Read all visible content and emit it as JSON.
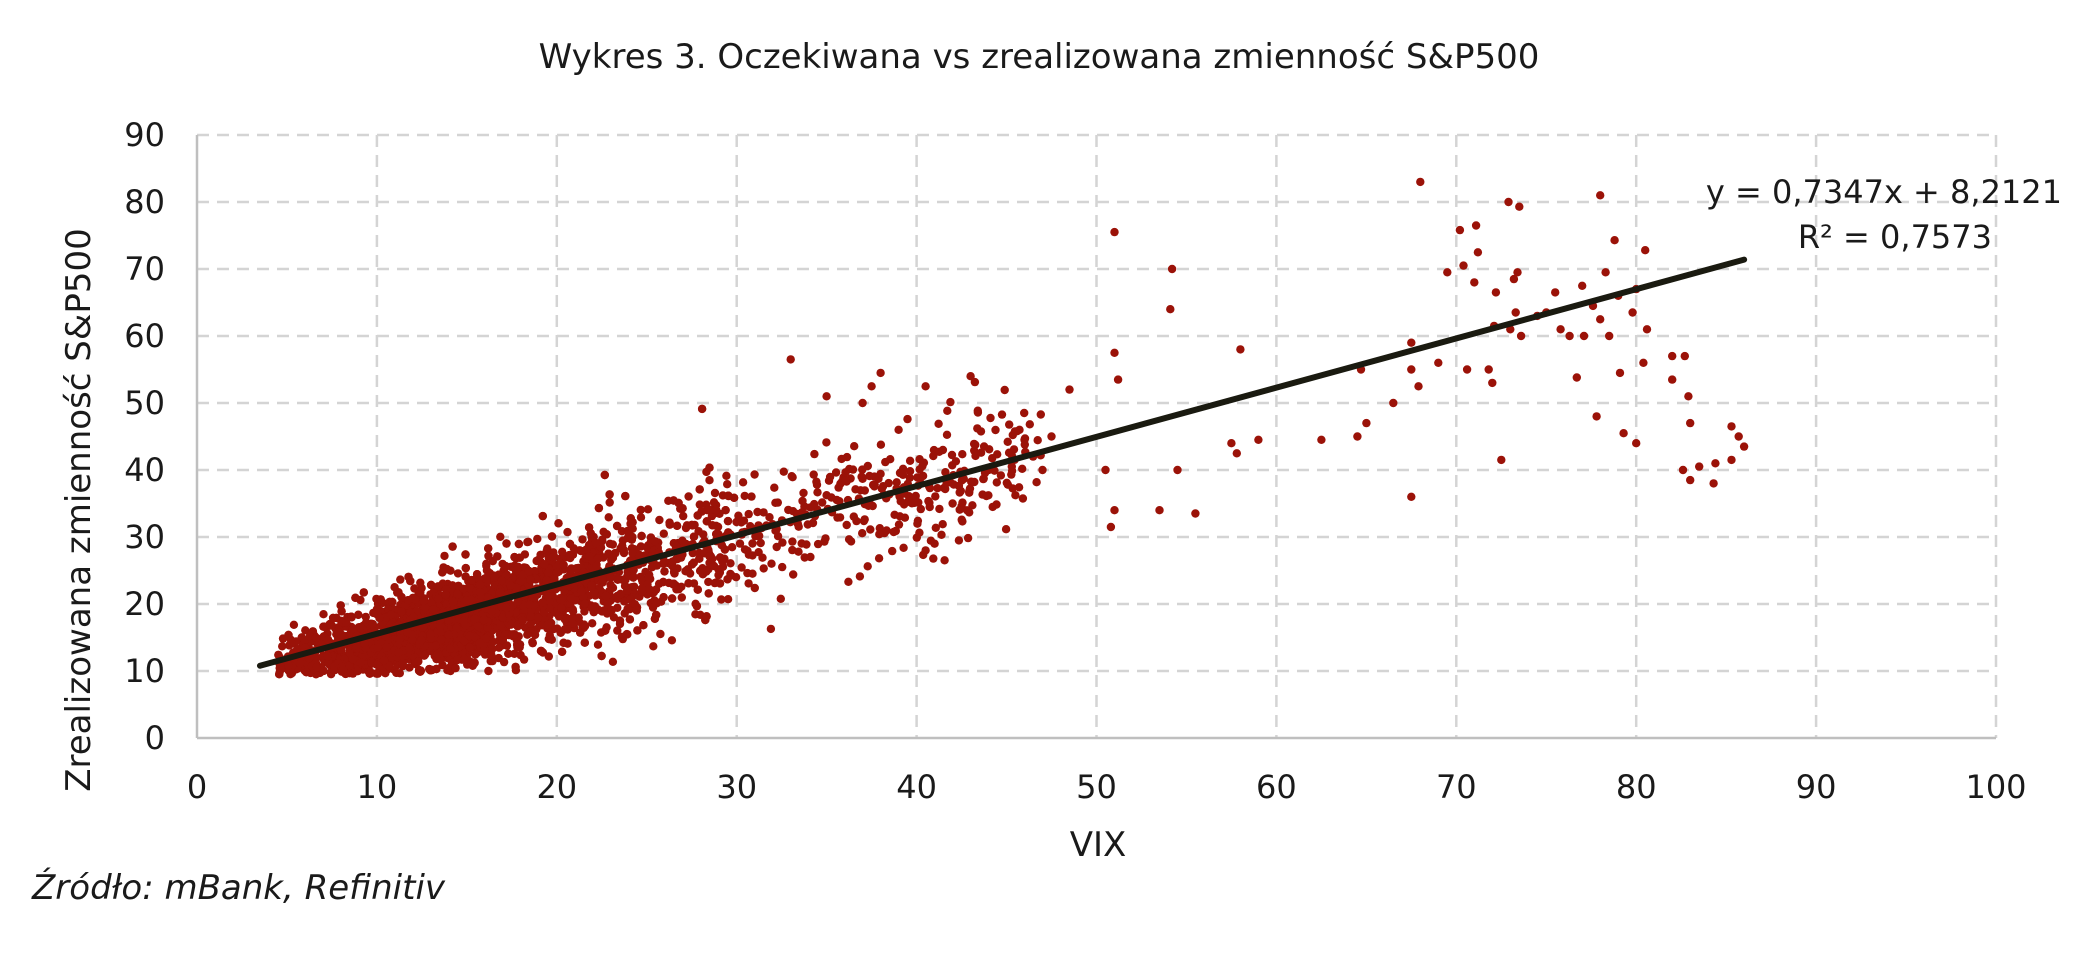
{
  "chart_data": {
    "type": "scatter",
    "title": "Wykres 3. Oczekiwana vs zrealizowana zmienność S&P500",
    "xlabel": "VIX",
    "ylabel": "Zrealizowana zmienność S&P500",
    "xlim": [
      0,
      100
    ],
    "ylim": [
      0,
      90
    ],
    "x_ticks": [
      "0",
      "10",
      "20",
      "30",
      "40",
      "50",
      "60",
      "70",
      "80",
      "90",
      "100"
    ],
    "y_ticks": [
      "0",
      "10",
      "20",
      "30",
      "40",
      "50",
      "60",
      "70",
      "80",
      "90"
    ],
    "grid": true,
    "point_color": "#9b1208",
    "trendline": {
      "color": "#1a1a10",
      "slope": 0.7347,
      "intercept": 8.2121,
      "x_range": [
        3.5,
        86
      ],
      "equation": "y = 0,7347x + 8,2121",
      "r_squared": "R² = 0,7573"
    },
    "sampled_points_note_x_y": [
      [
        33,
        56.5
      ],
      [
        35,
        51
      ],
      [
        37.5,
        52.5
      ],
      [
        38,
        54.5
      ],
      [
        37,
        50
      ],
      [
        39,
        46
      ],
      [
        40.5,
        52.5
      ],
      [
        43,
        54
      ],
      [
        41,
        29
      ],
      [
        40.5,
        28
      ],
      [
        42,
        35
      ],
      [
        44,
        40
      ],
      [
        46,
        44.5
      ],
      [
        47.5,
        45
      ],
      [
        47,
        40
      ],
      [
        48.5,
        52
      ],
      [
        50.5,
        40
      ],
      [
        51,
        75.5
      ],
      [
        51,
        57.5
      ],
      [
        51.2,
        53.5
      ],
      [
        51,
        34
      ],
      [
        50.8,
        31.5
      ],
      [
        53.5,
        34
      ],
      [
        54.2,
        70
      ],
      [
        54.1,
        64
      ],
      [
        54.5,
        40
      ],
      [
        55.5,
        33.5
      ],
      [
        57.5,
        44
      ],
      [
        57.8,
        42.5
      ],
      [
        58,
        58
      ],
      [
        59,
        44.5
      ],
      [
        62.5,
        44.5
      ],
      [
        64.5,
        45
      ],
      [
        64.7,
        55
      ],
      [
        65,
        47
      ],
      [
        66.5,
        50
      ],
      [
        67.5,
        59
      ],
      [
        67.5,
        55
      ],
      [
        67.5,
        36
      ],
      [
        68,
        83
      ],
      [
        67.9,
        52.5
      ],
      [
        69,
        56
      ],
      [
        69.5,
        69.5
      ],
      [
        70.2,
        75.8
      ],
      [
        70.4,
        70.5
      ],
      [
        70.6,
        55
      ],
      [
        71.1,
        76.5
      ],
      [
        71,
        68
      ],
      [
        71.2,
        72.5
      ],
      [
        71.8,
        55
      ],
      [
        72,
        53
      ],
      [
        72.1,
        61.5
      ],
      [
        72.2,
        66.5
      ],
      [
        72.5,
        41.5
      ],
      [
        72.9,
        80
      ],
      [
        73,
        61
      ],
      [
        73.2,
        68.5
      ],
      [
        73.3,
        63.5
      ],
      [
        73.4,
        69.5
      ],
      [
        73.5,
        79.3
      ],
      [
        73.6,
        60
      ],
      [
        74.5,
        63
      ],
      [
        75,
        63.5
      ],
      [
        75.5,
        66.5
      ],
      [
        75.8,
        61
      ],
      [
        76.3,
        60
      ],
      [
        76.7,
        53.8
      ],
      [
        77,
        67.5
      ],
      [
        77.1,
        60
      ],
      [
        77.6,
        64.5
      ],
      [
        77.8,
        48
      ],
      [
        78,
        81
      ],
      [
        78,
        62.5
      ],
      [
        78.3,
        69.5
      ],
      [
        78.5,
        60
      ],
      [
        78.8,
        74.3
      ],
      [
        79,
        66
      ],
      [
        79.1,
        54.5
      ],
      [
        79.3,
        45.5
      ],
      [
        79.8,
        63.5
      ],
      [
        80,
        67
      ],
      [
        80,
        44
      ],
      [
        80.4,
        56
      ],
      [
        80.5,
        72.8
      ],
      [
        80.6,
        61
      ],
      [
        82,
        57
      ],
      [
        82,
        53.5
      ],
      [
        82.6,
        40
      ],
      [
        82.7,
        57
      ],
      [
        82.9,
        51
      ],
      [
        83,
        47
      ],
      [
        83,
        38.5
      ],
      [
        83.5,
        40.5
      ],
      [
        84.3,
        38
      ],
      [
        84.4,
        41
      ],
      [
        85.3,
        46.5
      ],
      [
        85.3,
        41.5
      ],
      [
        85.7,
        45
      ],
      [
        86,
        43.5
      ]
    ]
  },
  "source": "Źródło: mBank, Refinitiv"
}
